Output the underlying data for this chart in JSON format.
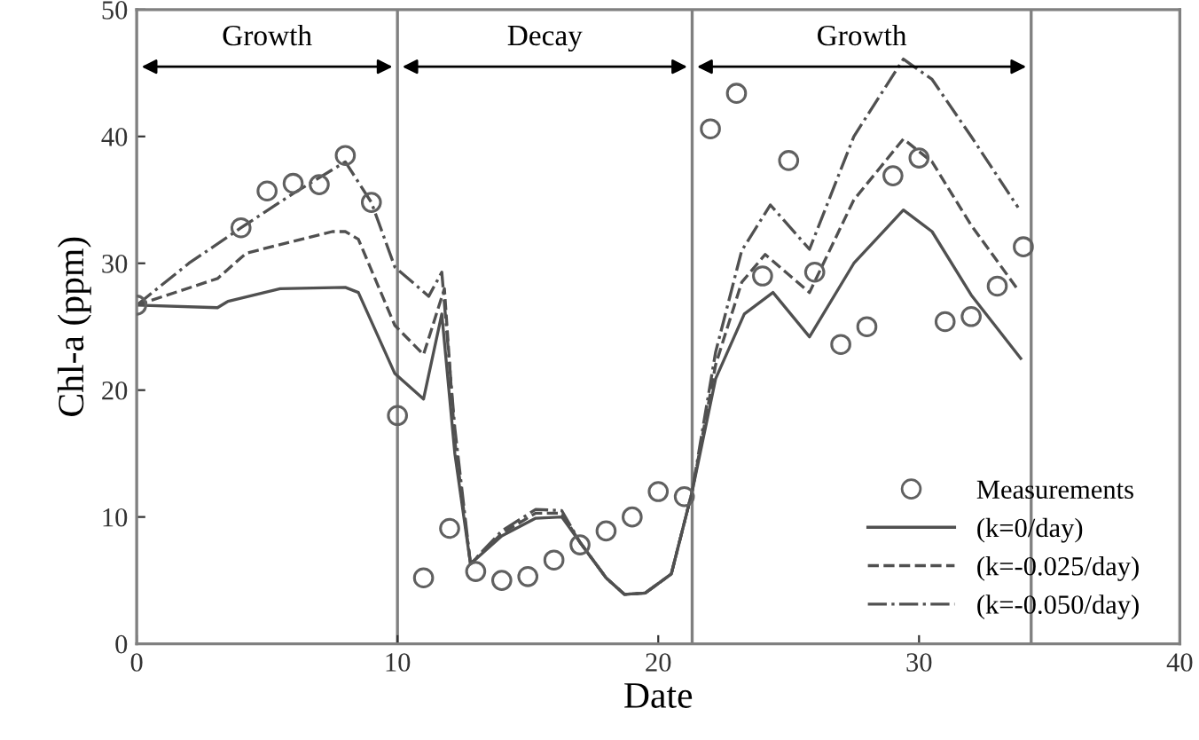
{
  "chart_data": {
    "type": "line",
    "xlabel": "Date",
    "ylabel": "Chl-a (ppm)",
    "xlim": [
      0,
      40
    ],
    "xticks": [
      0,
      10,
      20,
      30,
      40
    ],
    "ylim": [
      0,
      50
    ],
    "yticks": [
      0,
      10,
      20,
      30,
      40,
      50
    ],
    "legend": "bottom right",
    "ref_lines": [
      {
        "axis": "x",
        "value": 10,
        "color": "#808080"
      },
      {
        "axis": "x",
        "value": 21.3,
        "color": "#808080"
      },
      {
        "axis": "x",
        "value": 34.3,
        "color": "#808080"
      }
    ],
    "annotations": [
      "Growth",
      "Decay",
      "Growth"
    ],
    "series": [
      {
        "name": "Measurements",
        "type": "scatter",
        "marker": "circle",
        "color": "#606060",
        "x": [
          0,
          4,
          5,
          6,
          7,
          8,
          9,
          10,
          11,
          12,
          13,
          14,
          15,
          16,
          17,
          18,
          19,
          20,
          21,
          22,
          23,
          24,
          25,
          26,
          27,
          28,
          29,
          30,
          31,
          32,
          33,
          34
        ],
        "values": [
          26.7,
          32.8,
          35.7,
          36.3,
          36.2,
          38.5,
          34.8,
          18.0,
          5.2,
          9.1,
          5.7,
          5.0,
          5.3,
          6.6,
          7.8,
          8.9,
          10.0,
          12.0,
          11.6,
          40.6,
          43.4,
          29.0,
          38.1,
          29.3,
          23.6,
          25.0,
          36.9,
          38.3,
          25.4,
          25.8,
          28.2,
          31.3
        ]
      },
      {
        "name": "(k=0/day)",
        "line_style": "solid",
        "color": "#505050",
        "x": [
          0,
          3.1,
          3.5,
          5.5,
          8,
          8.5,
          9.9,
          11,
          11.7,
          12.2,
          12.8,
          14,
          15.3,
          16.3,
          17,
          18,
          18.7,
          19.5,
          20.5,
          21.3,
          22.2,
          23.3,
          24.4,
          25.8,
          27.5,
          29.4,
          30.5,
          32,
          33.9
        ],
        "values": [
          26.7,
          26.5,
          27.0,
          28.0,
          28.1,
          27.7,
          21.3,
          19.3,
          26.0,
          15.0,
          6.3,
          8.5,
          9.9,
          10.0,
          8.0,
          5.2,
          3.9,
          4.0,
          5.5,
          12.0,
          20.9,
          26.0,
          27.7,
          24.2,
          30.0,
          34.2,
          32.5,
          27.5,
          22.5
        ]
      },
      {
        "name": "(k=-0.025/day)",
        "line_style": "dashed",
        "color": "#505050",
        "x": [
          0,
          3.1,
          4.2,
          7.5,
          8,
          8.5,
          9.9,
          11,
          11.8,
          12.2,
          12.8,
          14,
          15.3,
          16.3,
          17,
          18,
          18.7,
          19.5,
          20.5,
          21.3,
          22.2,
          23.2,
          24.1,
          25.8,
          27.5,
          29.4,
          30.5,
          32,
          33.8
        ],
        "values": [
          26.7,
          28.8,
          30.8,
          32.5,
          32.5,
          31.9,
          25.1,
          22.8,
          28.0,
          16.0,
          6.3,
          8.7,
          10.3,
          10.3,
          8.0,
          5.2,
          3.9,
          4.0,
          5.5,
          12.0,
          22.0,
          28.5,
          30.7,
          27.7,
          35.0,
          39.8,
          38.0,
          33.0,
          27.9
        ]
      },
      {
        "name": "(k=-0.050/day)",
        "line_style": "dashdot",
        "color": "#505050",
        "x": [
          0,
          2,
          4,
          6,
          8,
          9,
          9.9,
          11.2,
          11.7,
          12.2,
          12.8,
          14,
          15.3,
          16.3,
          17,
          18,
          18.7,
          19.5,
          20.5,
          21.3,
          22.2,
          23.2,
          24.3,
          25.8,
          27.5,
          29.4,
          30.5,
          32,
          33.8
        ],
        "values": [
          26.7,
          30.0,
          32.8,
          35.5,
          38.0,
          34.8,
          29.7,
          27.4,
          29.3,
          17.0,
          6.3,
          8.9,
          10.6,
          10.5,
          8.0,
          5.2,
          3.9,
          4.0,
          5.5,
          12.0,
          23.0,
          31.0,
          34.6,
          31.1,
          40.0,
          46.1,
          44.5,
          40.0,
          34.4
        ]
      }
    ]
  }
}
